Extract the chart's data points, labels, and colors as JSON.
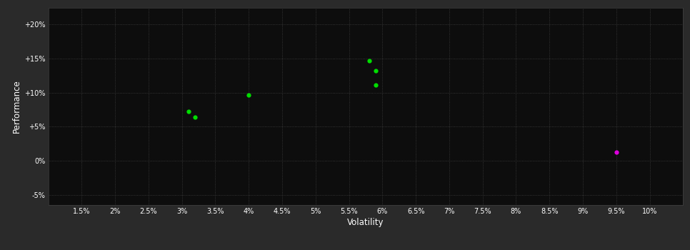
{
  "background_color": "#2a2a2a",
  "plot_bg_color": "#0d0d0d",
  "grid_color": "#404040",
  "text_color": "#ffffff",
  "xlabel": "Volatility",
  "ylabel": "Performance",
  "xlim": [
    0.01,
    0.105
  ],
  "ylim": [
    -0.065,
    0.225
  ],
  "xticks": [
    0.015,
    0.02,
    0.025,
    0.03,
    0.035,
    0.04,
    0.045,
    0.05,
    0.055,
    0.06,
    0.065,
    0.07,
    0.075,
    0.08,
    0.085,
    0.09,
    0.095,
    0.1
  ],
  "yticks": [
    -0.05,
    0.0,
    0.05,
    0.1,
    0.15,
    0.2
  ],
  "ytick_labels": [
    "-5%",
    "0%",
    "+5%",
    "+10%",
    "+15%",
    "+20%"
  ],
  "xtick_labels": [
    "1.5%",
    "2%",
    "2.5%",
    "3%",
    "3.5%",
    "4%",
    "4.5%",
    "5%",
    "5.5%",
    "6%",
    "6.5%",
    "7%",
    "7.5%",
    "8%",
    "8.5%",
    "9%",
    "9.5%",
    "10%"
  ],
  "green_points": [
    [
      0.031,
      0.072
    ],
    [
      0.032,
      0.064
    ],
    [
      0.04,
      0.096
    ],
    [
      0.058,
      0.147
    ],
    [
      0.059,
      0.132
    ],
    [
      0.059,
      0.111
    ]
  ],
  "magenta_points": [
    [
      0.095,
      0.013
    ]
  ],
  "green_color": "#00dd00",
  "magenta_color": "#dd00dd",
  "marker_size": 4.5
}
